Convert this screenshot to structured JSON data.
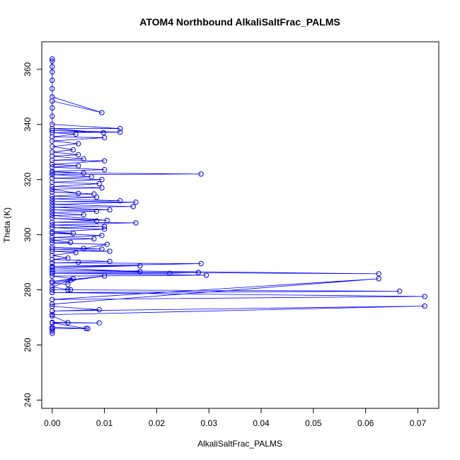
{
  "chart_data": {
    "type": "scatter",
    "title": "ATOM4 Northbound AlkaliSaltFrac_PALMS",
    "xlabel": "AlkaliSaltFrac_PALMS",
    "ylabel": "Theta (K)",
    "xlim": [
      -0.002,
      0.074
    ],
    "ylim": [
      237,
      370
    ],
    "x_ticks": [
      "0.00",
      "0.01",
      "0.02",
      "0.03",
      "0.04",
      "0.05",
      "0.06",
      "0.07"
    ],
    "y_ticks": [
      "240",
      "260",
      "280",
      "300",
      "320",
      "340",
      "360"
    ],
    "series_color": "#0000ff",
    "grid": false,
    "legend": "none",
    "points": [
      [
        0.0,
        264.2
      ],
      [
        0.0,
        265.0
      ],
      [
        0.0,
        265.8
      ],
      [
        0.0,
        266.5
      ],
      [
        0.0068,
        265.9
      ],
      [
        0.0,
        266.0
      ],
      [
        0.0065,
        266.0
      ],
      [
        0.0,
        268.0
      ],
      [
        0.009,
        268.0
      ],
      [
        0.0,
        268.2
      ],
      [
        0.003,
        268.1
      ],
      [
        0.0,
        270.5
      ],
      [
        0.0,
        271.0
      ],
      [
        0.0713,
        274.1
      ],
      [
        0.0,
        272.3
      ],
      [
        0.009,
        272.8
      ],
      [
        0.0,
        274.0
      ],
      [
        0.0,
        274.8
      ],
      [
        0.0625,
        284.0
      ],
      [
        0.0,
        276.5
      ],
      [
        0.0713,
        277.6
      ],
      [
        0.0,
        279.0
      ],
      [
        0.0665,
        279.5
      ],
      [
        0.0,
        280.0
      ],
      [
        0.003,
        280.0
      ],
      [
        0.0035,
        280.0
      ],
      [
        0.0,
        281.0
      ],
      [
        0.0035,
        283.5
      ],
      [
        0.003,
        282.0
      ],
      [
        0.0,
        282.5
      ],
      [
        0.01,
        285.0
      ],
      [
        0.0,
        283.0
      ],
      [
        0.004,
        284.0
      ],
      [
        0.0,
        285.0
      ],
      [
        0.0295,
        285.3
      ],
      [
        0.0,
        286.0
      ],
      [
        0.0225,
        286.0
      ],
      [
        0.028,
        286.3
      ],
      [
        0.0,
        286.5
      ],
      [
        0.0625,
        285.8
      ],
      [
        0.0,
        287.2
      ],
      [
        0.0168,
        286.6
      ],
      [
        0.0,
        288.0
      ],
      [
        0.0168,
        288.7
      ],
      [
        0.0,
        288.5
      ],
      [
        0.0285,
        289.5
      ],
      [
        0.0,
        289.8
      ],
      [
        0.005,
        290.0
      ],
      [
        0.011,
        290.3
      ],
      [
        0.0,
        291.0
      ],
      [
        0.003,
        291.5
      ],
      [
        0.0,
        292.5
      ],
      [
        0.0045,
        293.5
      ],
      [
        0.0,
        294.0
      ],
      [
        0.011,
        294.0
      ],
      [
        0.0,
        294.8
      ],
      [
        0.0095,
        294.8
      ],
      [
        0.0,
        295.5
      ],
      [
        0.006,
        295.0
      ],
      [
        0.0105,
        296.5
      ],
      [
        0.0,
        297.0
      ],
      [
        0.0035,
        297.2
      ],
      [
        0.0,
        298.0
      ],
      [
        0.008,
        298.5
      ],
      [
        0.0,
        299.0
      ],
      [
        0.0095,
        299.7
      ],
      [
        0.0,
        300.5
      ],
      [
        0.004,
        300.5
      ],
      [
        0.0,
        301.0
      ],
      [
        0.01,
        302.0
      ],
      [
        0.0,
        302.5
      ],
      [
        0.01,
        303.0
      ],
      [
        0.0,
        303.5
      ],
      [
        0.016,
        304.3
      ],
      [
        0.0,
        304.5
      ],
      [
        0.0085,
        305.0
      ],
      [
        0.0,
        306.0
      ],
      [
        0.0105,
        305.2
      ],
      [
        0.0,
        307.0
      ],
      [
        0.006,
        307.2
      ],
      [
        0.0,
        308.0
      ],
      [
        0.0085,
        308.5
      ],
      [
        0.0,
        309.0
      ],
      [
        0.011,
        309.0
      ],
      [
        0.0,
        310.0
      ],
      [
        0.0155,
        310.2
      ],
      [
        0.0,
        311.0
      ],
      [
        0.016,
        311.8
      ],
      [
        0.0,
        312.0
      ],
      [
        0.013,
        312.3
      ],
      [
        0.0,
        313.0
      ],
      [
        0.0085,
        313.6
      ],
      [
        0.0,
        314.0
      ],
      [
        0.008,
        314.8
      ],
      [
        0.0,
        315.5
      ],
      [
        0.005,
        315.0
      ],
      [
        0.0,
        316.5
      ],
      [
        0.0095,
        317.0
      ],
      [
        0.0,
        317.5
      ],
      [
        0.009,
        318.5
      ],
      [
        0.0,
        319.0
      ],
      [
        0.0095,
        320.0
      ],
      [
        0.0,
        320.5
      ],
      [
        0.0075,
        321.0
      ],
      [
        0.0,
        321.8
      ],
      [
        0.0285,
        322.0
      ],
      [
        0.0,
        322.5
      ],
      [
        0.006,
        322.3
      ],
      [
        0.0,
        323.0
      ],
      [
        0.01,
        323.6
      ],
      [
        0.0,
        324.5
      ],
      [
        0.005,
        325.0
      ],
      [
        0.0,
        325.5
      ],
      [
        0.01,
        326.8
      ],
      [
        0.0,
        327.0
      ],
      [
        0.006,
        327.5
      ],
      [
        0.0,
        328.5
      ],
      [
        0.005,
        329.0
      ],
      [
        0.0,
        330.0
      ],
      [
        0.004,
        330.8
      ],
      [
        0.0,
        332.0
      ],
      [
        0.005,
        333.0
      ],
      [
        0.0,
        334.0
      ],
      [
        0.01,
        335.2
      ],
      [
        0.0,
        335.5
      ],
      [
        0.0045,
        336.5
      ],
      [
        0.0,
        337.0
      ],
      [
        0.013,
        337.2
      ],
      [
        0.0,
        337.8
      ],
      [
        0.0098,
        337.0
      ],
      [
        0.0,
        338.5
      ],
      [
        0.013,
        338.5
      ],
      [
        0.0,
        340.0
      ],
      [
        0.0,
        343.0
      ],
      [
        0.0,
        346.0
      ],
      [
        0.0,
        348.5
      ],
      [
        0.0095,
        344.3
      ],
      [
        0.0,
        350.0
      ],
      [
        0.0,
        353.0
      ],
      [
        0.0,
        356.0
      ],
      [
        0.0,
        359.0
      ],
      [
        0.0,
        361.0
      ],
      [
        0.0,
        363.0
      ],
      [
        0.0,
        363.8
      ]
    ]
  }
}
